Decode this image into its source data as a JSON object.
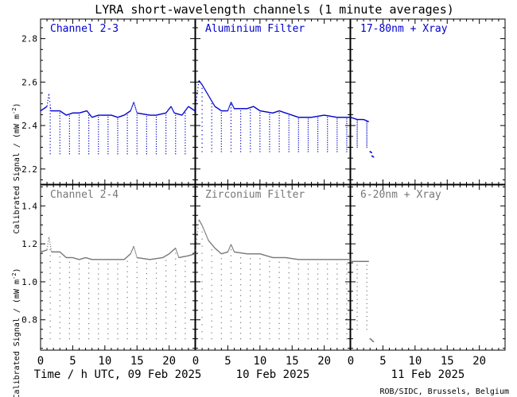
{
  "title": "LYRA short-wavelength channels (1 minute averages)",
  "ylabel": "Calibrated Signal / (mW m",
  "ylabel_sup": "-2",
  "ylabel_end": ")",
  "credit": "ROB/SIDC, Brussels, Belgium",
  "colors": {
    "top": "#0000cc",
    "bottom": "#777777",
    "frame": "#000000"
  },
  "chart_data": {
    "type": "scatter",
    "x_unit": "hours UTC",
    "days": [
      {
        "date": "09 Feb 2025",
        "label": "Time / h UTC, 09 Feb 2025"
      },
      {
        "date": "10 Feb 2025",
        "label": "10 Feb 2025"
      },
      {
        "date": "11 Feb 2025",
        "label": "11 Feb 2025"
      }
    ],
    "xlim": [
      0,
      24
    ],
    "xticks": [
      0,
      5,
      10,
      15,
      20
    ],
    "xtick_labels": [
      "0",
      "5",
      "10",
      "15",
      "20"
    ],
    "rows": [
      {
        "ylim": [
          2.13,
          2.89
        ],
        "yticks": [
          2.2,
          2.4,
          2.6,
          2.8
        ],
        "ytick_labels": [
          "2.2",
          "2.4",
          "2.6",
          "2.8"
        ],
        "panels": [
          {
            "label": "Channel 2-3",
            "baseline": [
              [
                0,
                2.47
              ],
              [
                1,
                2.49
              ],
              [
                1.3,
                2.55
              ],
              [
                1.6,
                2.47
              ],
              [
                3,
                2.47
              ],
              [
                4,
                2.45
              ],
              [
                5,
                2.46
              ],
              [
                6,
                2.46
              ],
              [
                7.2,
                2.47
              ],
              [
                8,
                2.44
              ],
              [
                9,
                2.45
              ],
              [
                10,
                2.45
              ],
              [
                11,
                2.45
              ],
              [
                12,
                2.44
              ],
              [
                13,
                2.45
              ],
              [
                14,
                2.47
              ],
              [
                14.5,
                2.51
              ],
              [
                15,
                2.46
              ],
              [
                17,
                2.45
              ],
              [
                18,
                2.45
              ],
              [
                19.5,
                2.46
              ],
              [
                20.3,
                2.49
              ],
              [
                20.8,
                2.46
              ],
              [
                22,
                2.45
              ],
              [
                23,
                2.49
              ],
              [
                24,
                2.47
              ]
            ],
            "dips": {
              "start": 1.5,
              "step": 1.5,
              "bottom": 2.27
            }
          },
          {
            "label": "Aluminium Filter",
            "baseline": [
              [
                0,
                2.49
              ],
              [
                0.5,
                2.61
              ],
              [
                1,
                2.59
              ],
              [
                2,
                2.54
              ],
              [
                3,
                2.49
              ],
              [
                4,
                2.47
              ],
              [
                5,
                2.47
              ],
              [
                5.5,
                2.51
              ],
              [
                6,
                2.48
              ],
              [
                8,
                2.48
              ],
              [
                9,
                2.49
              ],
              [
                10,
                2.47
              ],
              [
                12,
                2.46
              ],
              [
                13,
                2.47
              ],
              [
                14,
                2.46
              ],
              [
                15,
                2.45
              ],
              [
                16,
                2.44
              ],
              [
                18,
                2.44
              ],
              [
                20,
                2.45
              ],
              [
                22,
                2.44
              ],
              [
                24,
                2.44
              ]
            ],
            "dips": {
              "start": 1.0,
              "step": 1.5,
              "bottom": 2.28
            }
          },
          {
            "label": "17-80nm + Xray",
            "baseline": [
              [
                0,
                2.44
              ],
              [
                1,
                2.43
              ],
              [
                2,
                2.43
              ],
              [
                2.8,
                2.42
              ]
            ],
            "dips": {
              "start": 1.0,
              "step": 1.5,
              "end": 2.5,
              "bottom": 2.3
            },
            "tail": [
              [
                3.0,
                2.28
              ],
              [
                3.3,
                2.26
              ]
            ]
          }
        ]
      },
      {
        "ylim": [
          0.64,
          1.51
        ],
        "yticks": [
          0.8,
          1.0,
          1.2,
          1.4
        ],
        "ytick_labels": [
          "0.8",
          "1.0",
          "1.2",
          "1.4"
        ],
        "panels": [
          {
            "label": "Channel 2-4",
            "baseline": [
              [
                0,
                1.16
              ],
              [
                1,
                1.17
              ],
              [
                1.3,
                1.24
              ],
              [
                1.7,
                1.16
              ],
              [
                3,
                1.16
              ],
              [
                4,
                1.13
              ],
              [
                5,
                1.13
              ],
              [
                6,
                1.12
              ],
              [
                7,
                1.13
              ],
              [
                8,
                1.12
              ],
              [
                10,
                1.12
              ],
              [
                12,
                1.12
              ],
              [
                13,
                1.12
              ],
              [
                14,
                1.15
              ],
              [
                14.5,
                1.19
              ],
              [
                15,
                1.13
              ],
              [
                17,
                1.12
              ],
              [
                19,
                1.13
              ],
              [
                20,
                1.15
              ],
              [
                21,
                1.18
              ],
              [
                21.5,
                1.13
              ],
              [
                23,
                1.14
              ],
              [
                24,
                1.15
              ]
            ],
            "dips": {
              "start": 1.5,
              "step": 1.5,
              "bottom": 0.7
            }
          },
          {
            "label": "Zirconium Filter",
            "baseline": [
              [
                0,
                1.17
              ],
              [
                0.5,
                1.33
              ],
              [
                1,
                1.3
              ],
              [
                2,
                1.22
              ],
              [
                3,
                1.18
              ],
              [
                4,
                1.15
              ],
              [
                5,
                1.16
              ],
              [
                5.5,
                1.2
              ],
              [
                6,
                1.16
              ],
              [
                8,
                1.15
              ],
              [
                10,
                1.15
              ],
              [
                12,
                1.13
              ],
              [
                14,
                1.13
              ],
              [
                16,
                1.12
              ],
              [
                18,
                1.12
              ],
              [
                20,
                1.12
              ],
              [
                22,
                1.12
              ],
              [
                24,
                1.12
              ]
            ],
            "dips": {
              "start": 1.0,
              "step": 1.5,
              "bottom": 0.7
            }
          },
          {
            "label": "6-20nm + Xray",
            "baseline": [
              [
                0,
                1.11
              ],
              [
                1,
                1.11
              ],
              [
                2,
                1.11
              ],
              [
                2.8,
                1.11
              ]
            ],
            "dips": {
              "start": 1.0,
              "step": 1.5,
              "end": 2.5,
              "bottom": 0.75
            },
            "tail": [
              [
                3.0,
                0.7
              ],
              [
                3.3,
                0.69
              ]
            ]
          }
        ]
      }
    ]
  }
}
